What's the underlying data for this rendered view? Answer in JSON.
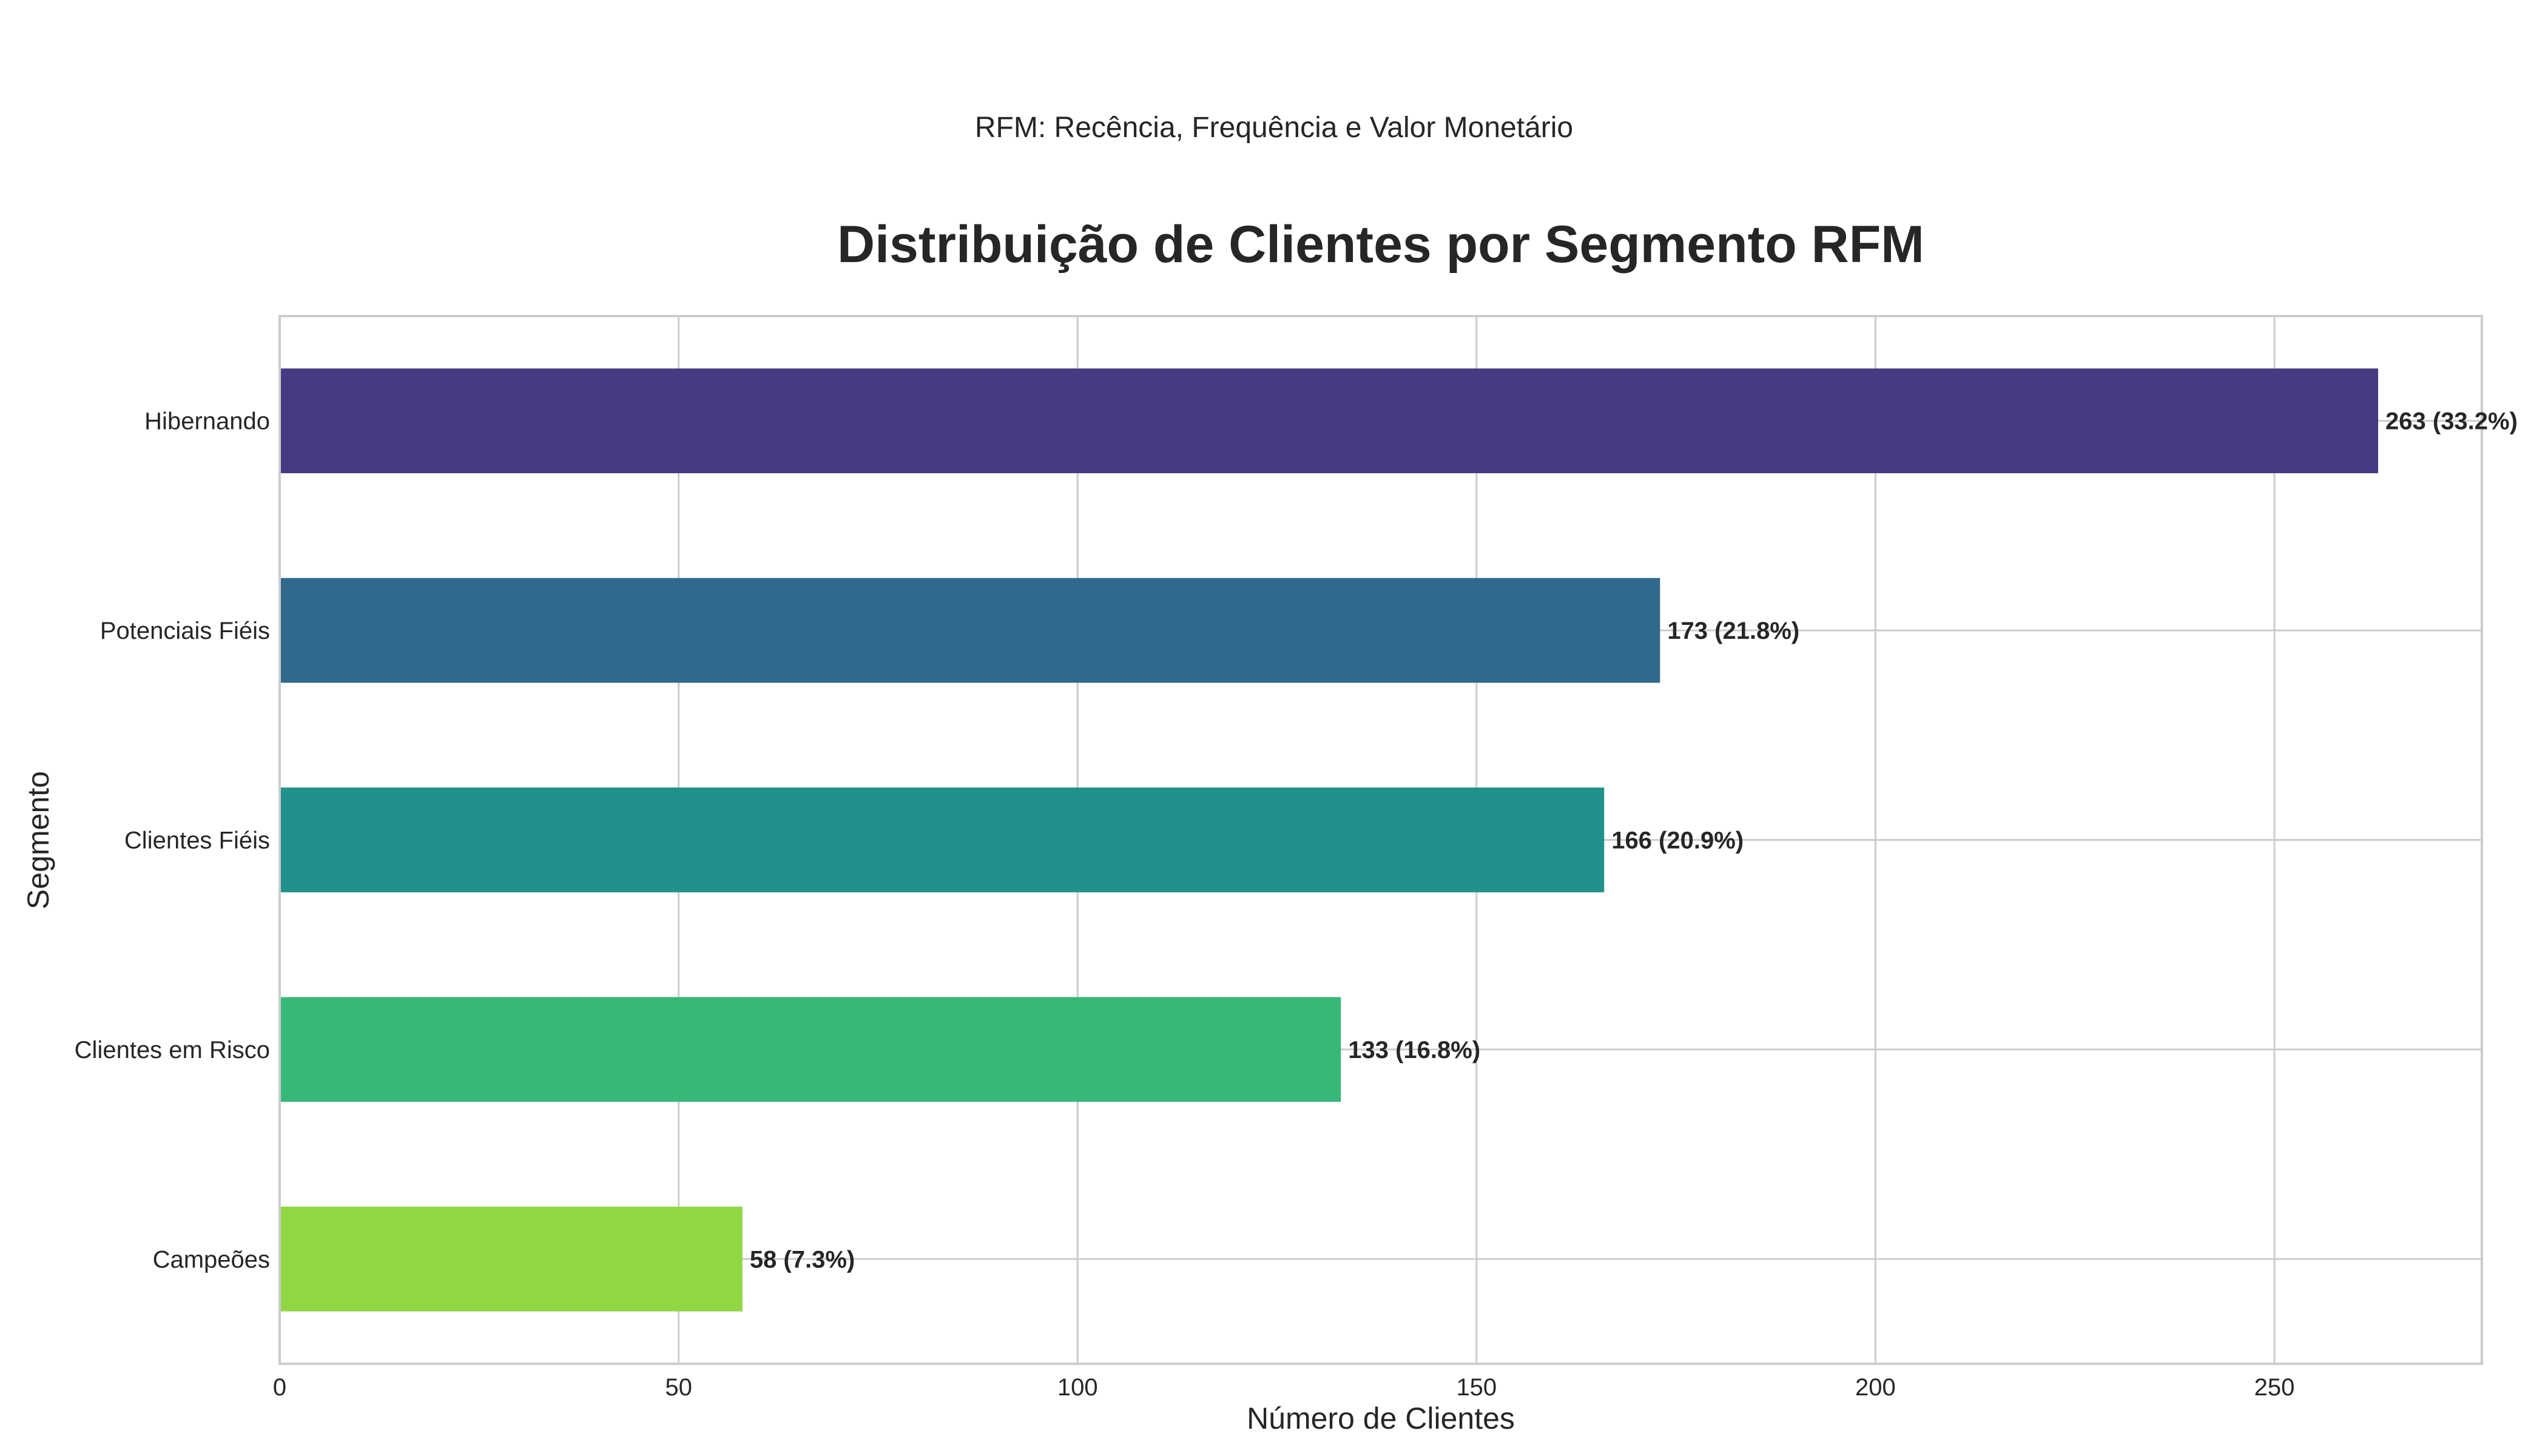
{
  "suptitle": "RFM: Recência, Frequência e Valor Monetário",
  "chart_data": {
    "type": "bar",
    "orientation": "horizontal",
    "title": "Distribuição de Clientes por Segmento RFM",
    "xlabel": "Número de Clientes",
    "ylabel": "Segmento",
    "xlim": [
      0,
      276
    ],
    "xticks": [
      0,
      50,
      100,
      150,
      200,
      250
    ],
    "grid": true,
    "legend": "none",
    "categories": [
      "Hibernando",
      "Potenciais Fiéis",
      "Clientes Fiéis",
      "Clientes em Risco",
      "Campeões"
    ],
    "values": [
      263,
      173,
      166,
      133,
      58
    ],
    "percentages": [
      "33.2%",
      "21.8%",
      "20.9%",
      "16.8%",
      "7.3%"
    ],
    "data_labels": [
      "263 (33.2%)",
      "173 (21.8%)",
      "166 (20.9%)",
      "133 (16.8%)",
      "58 (7.3%)"
    ],
    "colors": [
      "#463a82",
      "#31698d",
      "#21918c",
      "#37b878",
      "#90d743"
    ]
  }
}
